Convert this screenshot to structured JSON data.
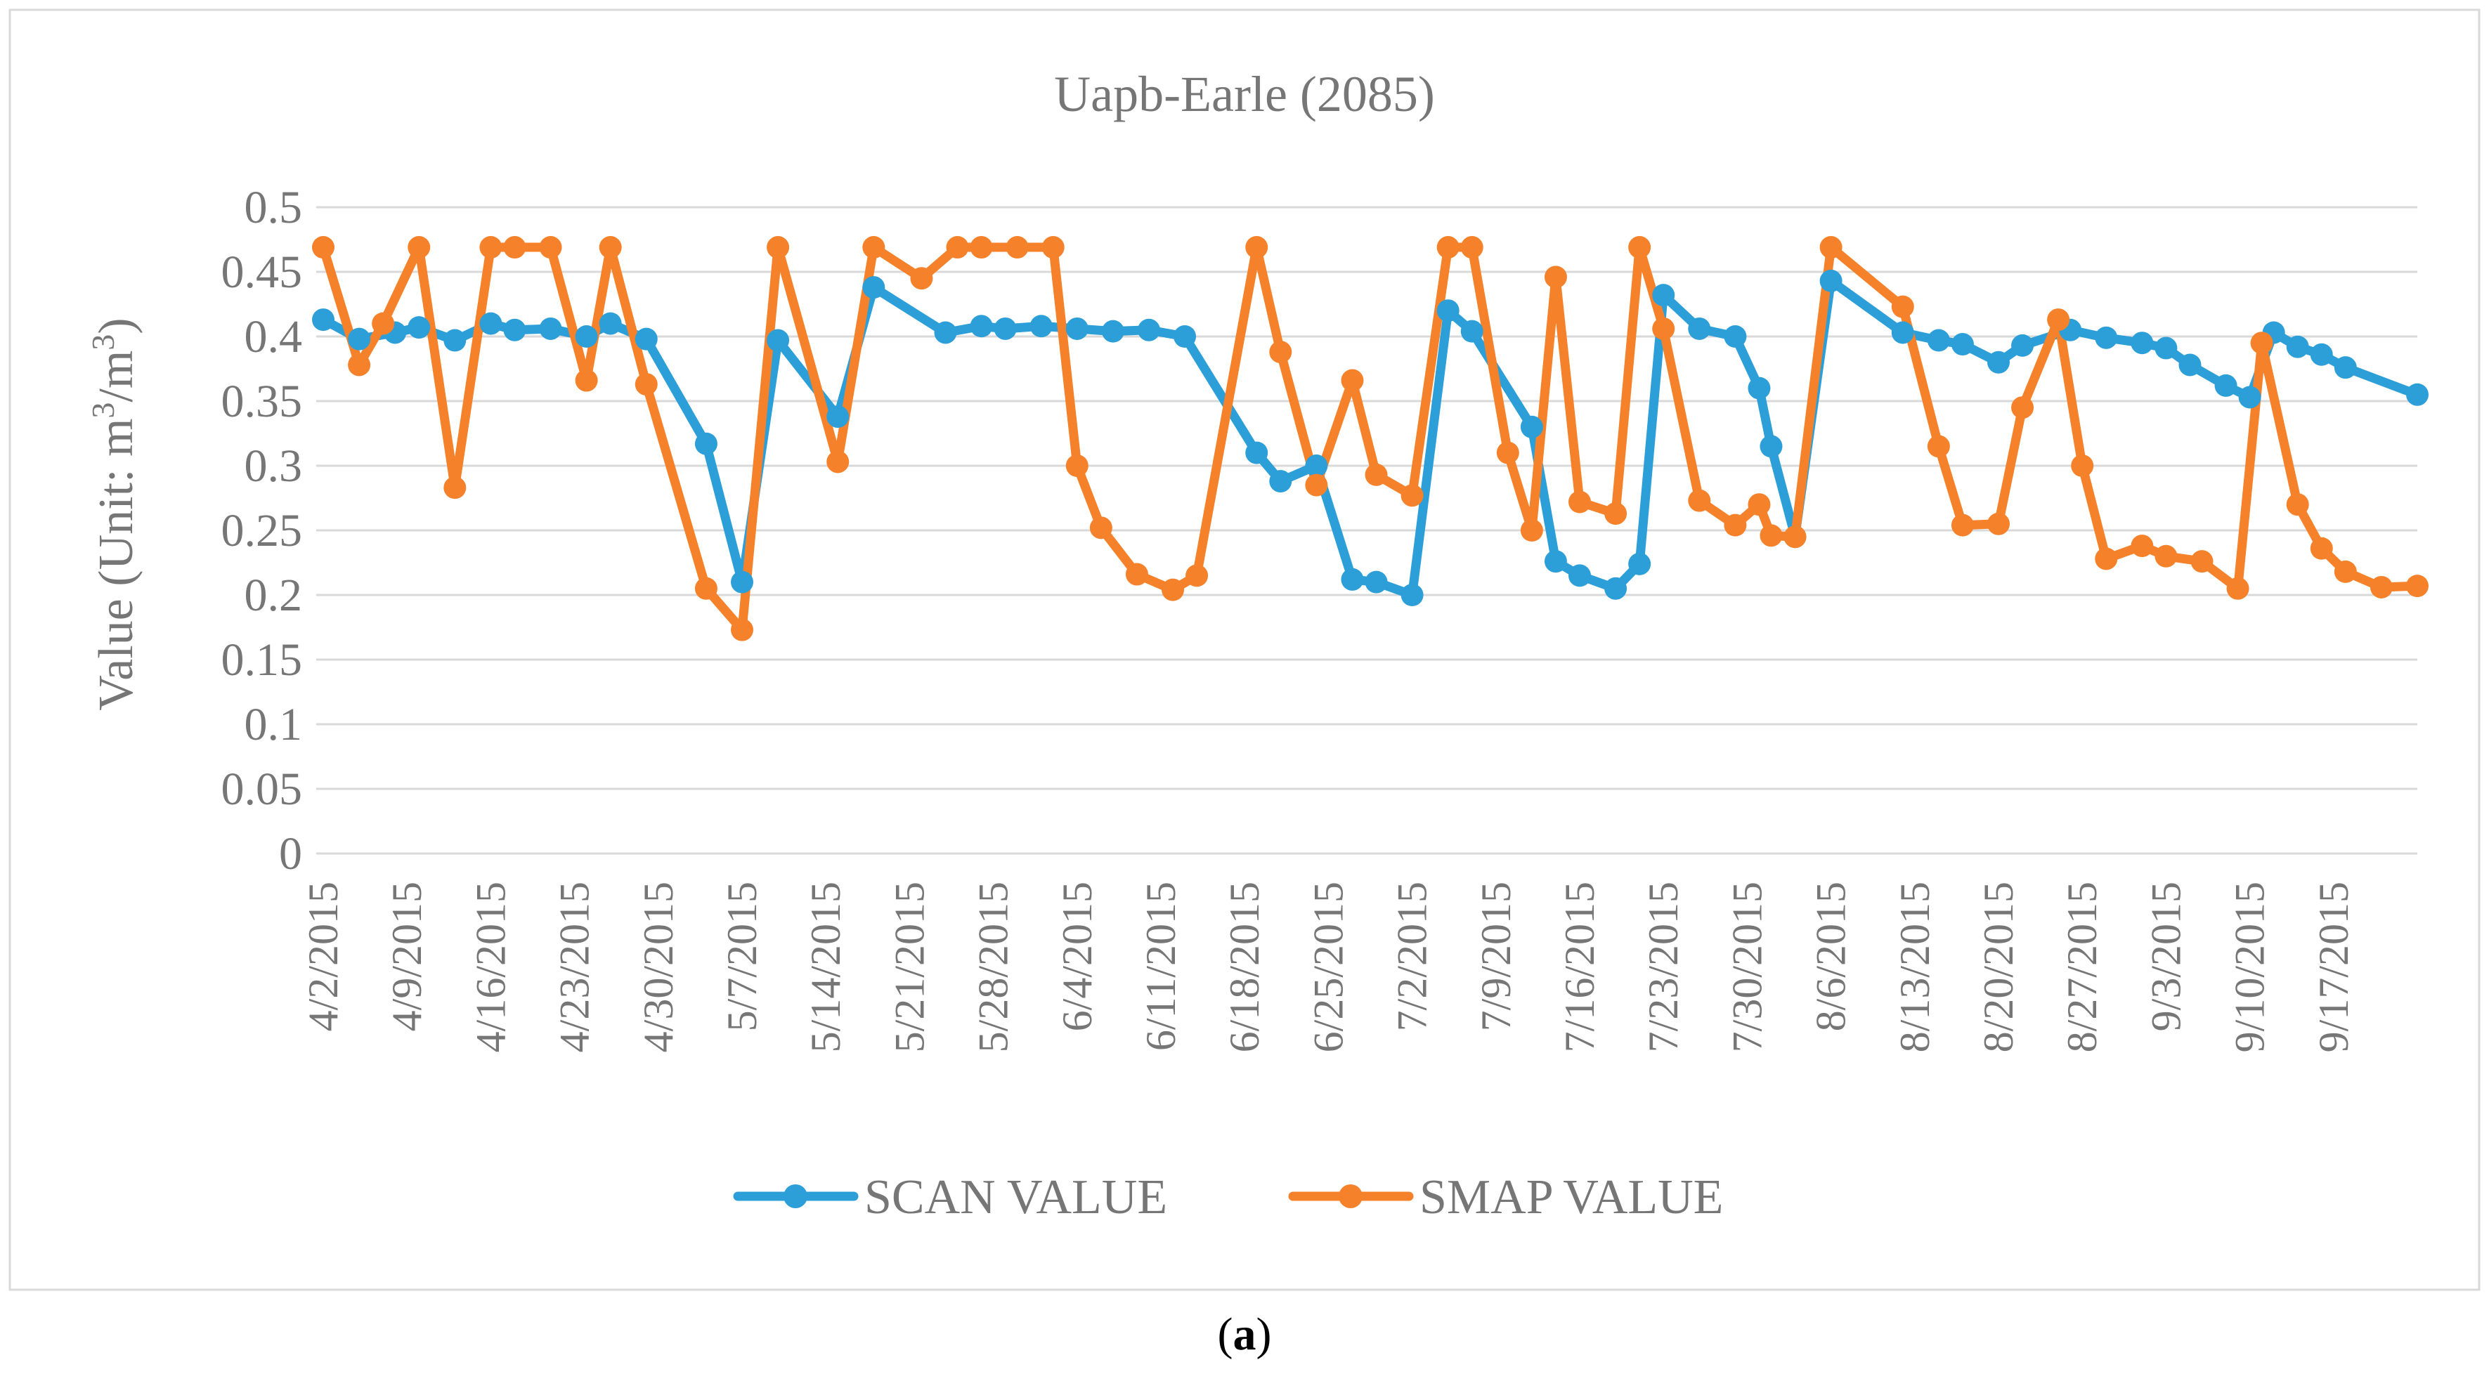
{
  "chart_data": {
    "type": "line",
    "title": "Uapb-Earle (2085)",
    "ylabel": "Value (Unit: m³/m³)",
    "ylabel_parts": {
      "prefix": "Value (Unit: m",
      "sup1": "3",
      "mid": "/m",
      "sup2": "3",
      "suffix": ")"
    },
    "xlabel": "",
    "ylim": [
      0,
      0.5
    ],
    "y_ticks": [
      "0",
      "0.05",
      "0.1",
      "0.15",
      "0.2",
      "0.25",
      "0.3",
      "0.35",
      "0.4",
      "0.45",
      "0.5"
    ],
    "x_range_days": [
      0,
      175
    ],
    "x_ticks": [
      {
        "label": "4/2/2015",
        "day": 0
      },
      {
        "label": "4/9/2015",
        "day": 7
      },
      {
        "label": "4/16/2015",
        "day": 14
      },
      {
        "label": "4/23/2015",
        "day": 21
      },
      {
        "label": "4/30/2015",
        "day": 28
      },
      {
        "label": "5/7/2015",
        "day": 35
      },
      {
        "label": "5/14/2015",
        "day": 42
      },
      {
        "label": "5/21/2015",
        "day": 49
      },
      {
        "label": "5/28/2015",
        "day": 56
      },
      {
        "label": "6/4/2015",
        "day": 63
      },
      {
        "label": "6/11/2015",
        "day": 70
      },
      {
        "label": "6/18/2015",
        "day": 77
      },
      {
        "label": "6/25/2015",
        "day": 84
      },
      {
        "label": "7/2/2015",
        "day": 91
      },
      {
        "label": "7/9/2015",
        "day": 98
      },
      {
        "label": "7/16/2015",
        "day": 105
      },
      {
        "label": "7/23/2015",
        "day": 112
      },
      {
        "label": "7/30/2015",
        "day": 119
      },
      {
        "label": "8/6/2015",
        "day": 126
      },
      {
        "label": "8/13/2015",
        "day": 133
      },
      {
        "label": "8/20/2015",
        "day": 140
      },
      {
        "label": "8/27/2015",
        "day": 147
      },
      {
        "label": "9/3/2015",
        "day": 154
      },
      {
        "label": "9/10/2015",
        "day": 161
      },
      {
        "label": "9/17/2015",
        "day": 168
      }
    ],
    "grid": true,
    "legend_position": "bottom-center",
    "series": [
      {
        "name": "SCAN VALUE",
        "color": "#2C9FD9",
        "x": [
          0,
          3,
          6,
          8,
          11,
          14,
          16,
          19,
          22,
          24,
          27,
          32,
          35,
          38,
          43,
          46,
          52,
          55,
          57,
          60,
          63,
          66,
          69,
          72,
          78,
          80,
          83,
          86,
          88,
          91,
          94,
          96,
          101,
          103,
          105,
          108,
          110,
          112,
          115,
          118,
          120,
          121,
          123,
          126,
          132,
          135,
          137,
          140,
          142,
          146,
          149,
          152,
          154,
          156,
          159,
          161,
          163,
          165,
          167,
          169,
          175
        ],
        "values": [
          0.413,
          0.398,
          0.403,
          0.407,
          0.397,
          0.41,
          0.405,
          0.406,
          0.4,
          0.41,
          0.398,
          0.317,
          0.21,
          0.397,
          0.338,
          0.438,
          0.403,
          0.408,
          0.406,
          0.408,
          0.406,
          0.404,
          0.405,
          0.4,
          0.31,
          0.288,
          0.3,
          0.212,
          0.21,
          0.2,
          0.42,
          0.404,
          0.33,
          0.226,
          0.215,
          0.205,
          0.224,
          0.432,
          0.406,
          0.4,
          0.36,
          0.315,
          0.245,
          0.443,
          0.403,
          0.397,
          0.394,
          0.38,
          0.393,
          0.405,
          0.399,
          0.395,
          0.391,
          0.378,
          0.362,
          0.353,
          0.403,
          0.392,
          0.386,
          0.376,
          0.355
        ]
      },
      {
        "name": "SMAP VALUE",
        "color": "#F5822A",
        "x": [
          0,
          3,
          5,
          8,
          11,
          14,
          16,
          19,
          22,
          24,
          27,
          32,
          35,
          38,
          43,
          46,
          50,
          53,
          55,
          58,
          61,
          63,
          65,
          68,
          71,
          73,
          78,
          80,
          83,
          86,
          88,
          91,
          94,
          96,
          99,
          101,
          103,
          105,
          108,
          110,
          112,
          115,
          118,
          120,
          121,
          123,
          126,
          132,
          135,
          137,
          140,
          142,
          145,
          147,
          149,
          152,
          154,
          157,
          160,
          162,
          165,
          167,
          169,
          172,
          175
        ],
        "values": [
          0.469,
          0.378,
          0.41,
          0.469,
          0.283,
          0.469,
          0.469,
          0.469,
          0.366,
          0.469,
          0.363,
          0.205,
          0.173,
          0.469,
          0.303,
          0.469,
          0.445,
          0.469,
          0.469,
          0.469,
          0.469,
          0.3,
          0.252,
          0.216,
          0.204,
          0.215,
          0.469,
          0.388,
          0.285,
          0.366,
          0.293,
          0.277,
          0.469,
          0.469,
          0.31,
          0.25,
          0.446,
          0.272,
          0.263,
          0.469,
          0.406,
          0.273,
          0.254,
          0.27,
          0.246,
          0.245,
          0.469,
          0.423,
          0.315,
          0.254,
          0.255,
          0.345,
          0.413,
          0.3,
          0.228,
          0.238,
          0.23,
          0.226,
          0.205,
          0.395,
          0.27,
          0.236,
          0.218,
          0.206,
          0.207
        ]
      }
    ]
  },
  "caption": {
    "letter": "a"
  }
}
